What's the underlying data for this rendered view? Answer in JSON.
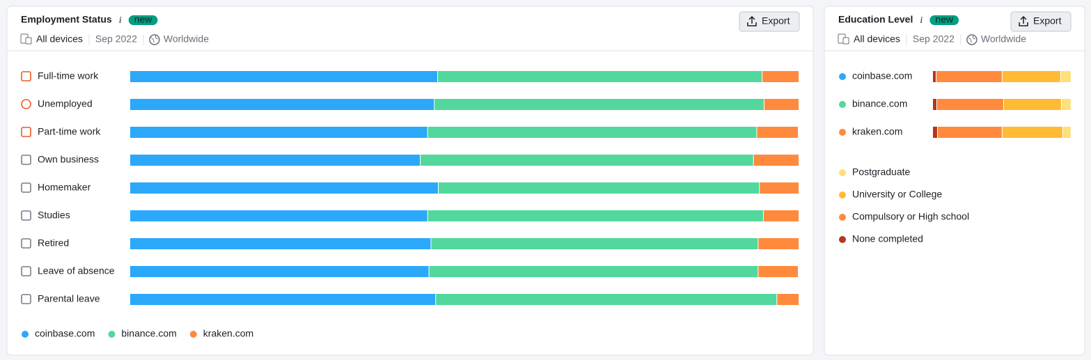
{
  "chart_data": [
    {
      "type": "bar",
      "orientation": "horizontal",
      "stacked": true,
      "title": "Employment Status",
      "badge": "new",
      "filters": [
        "All devices",
        "Sep 2022",
        "Worldwide"
      ],
      "button": "Export",
      "categories": [
        "Full-time work",
        "Unemployed",
        "Part-time work",
        "Own business",
        "Homemaker",
        "Studies",
        "Retired",
        "Leave of absence",
        "Parental leave"
      ],
      "xlim": [
        0,
        100
      ],
      "legend": "bottom-left",
      "series": [
        {
          "name": "coinbase.com",
          "color": "#2ca8fb",
          "values": [
            46.0,
            45.5,
            44.5,
            43.4,
            46.1,
            44.5,
            45.0,
            44.7,
            45.7
          ]
        },
        {
          "name": "binance.com",
          "color": "#52d89c",
          "values": [
            48.5,
            49.3,
            49.2,
            49.8,
            48.0,
            50.2,
            48.9,
            49.2,
            51.0
          ]
        },
        {
          "name": "kraken.com",
          "color": "#ff8a3d",
          "values": [
            5.5,
            5.2,
            6.2,
            6.8,
            5.9,
            5.3,
            6.1,
            6.0,
            3.3
          ]
        }
      ]
    },
    {
      "type": "bar",
      "orientation": "horizontal",
      "stacked": true,
      "title": "Education Level",
      "badge": "new",
      "filters": [
        "All devices",
        "Sep 2022",
        "Worldwide"
      ],
      "button": "Export",
      "categories": [
        "coinbase.com",
        "binance.com",
        "kraken.com"
      ],
      "category_colors": [
        "#2ca8fb",
        "#52d89c",
        "#ff8a3d"
      ],
      "xlim": [
        0,
        100
      ],
      "legend": "bottom-left",
      "series": [
        {
          "name": "Postgraduate",
          "color": "#ffdf7a",
          "values": [
            7.5,
            7.0,
            6.0
          ]
        },
        {
          "name": "University or College",
          "color": "#ffbb33",
          "values": [
            42.2,
            41.7,
            43.7
          ]
        },
        {
          "name": "Compulsory or High school",
          "color": "#ff8a3d",
          "values": [
            47.7,
            48.2,
            46.7
          ]
        },
        {
          "name": "None completed",
          "color": "#b5361b",
          "values": [
            2.5,
            3.0,
            3.5
          ]
        }
      ]
    }
  ]
}
